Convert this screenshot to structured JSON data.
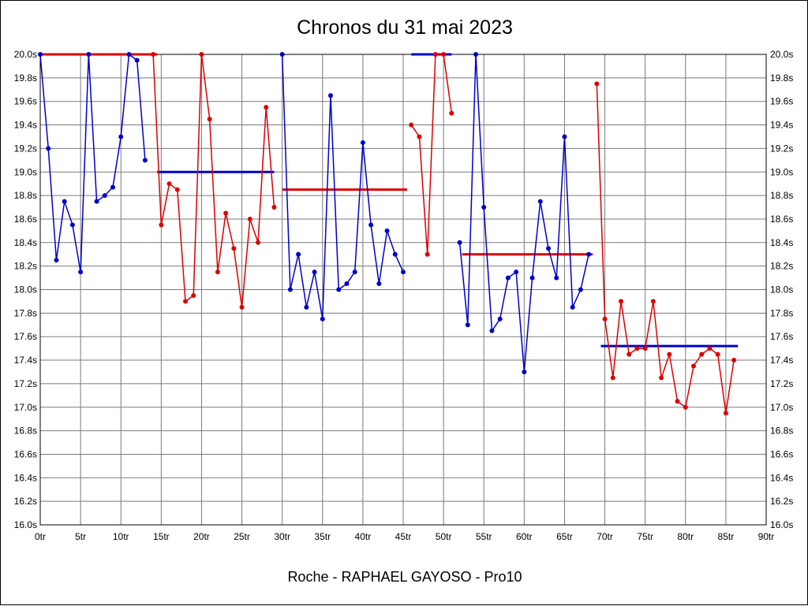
{
  "title": "Chronos du 31 mai 2023",
  "footer": "Roche - RAPHAEL GAYOSO - Pro10",
  "chart_data": {
    "type": "line",
    "title": "Chronos du 31 mai 2023",
    "x_unit": "tr",
    "y_unit": "s",
    "xlim": [
      0,
      90
    ],
    "ylim": [
      16.0,
      20.0
    ],
    "x_tick_step": 5,
    "y_tick_step": 0.2,
    "grid": true,
    "legend": "none",
    "x_tick_labels": [
      "0tr",
      "5tr",
      "10tr",
      "15tr",
      "20tr",
      "25tr",
      "30tr",
      "35tr",
      "40tr",
      "45tr",
      "50tr",
      "55tr",
      "60tr",
      "65tr",
      "70tr",
      "75tr",
      "80tr",
      "85tr",
      "90tr"
    ],
    "y_tick_labels": [
      "20.0s",
      "19.8s",
      "19.6s",
      "19.4s",
      "19.2s",
      "19.0s",
      "18.8s",
      "18.6s",
      "18.4s",
      "18.2s",
      "18.0s",
      "17.8s",
      "17.6s",
      "17.4s",
      "17.2s",
      "17.0s",
      "16.8s",
      "16.6s",
      "16.4s",
      "16.2s",
      "16.0s"
    ],
    "colors": {
      "blue": "#0000cc",
      "red": "#dd0000",
      "grid": "#7a7a7a",
      "axis": "#000000",
      "text": "#000000"
    },
    "segments": [
      {
        "name": "stint-1",
        "color": "blue",
        "laps": [
          [
            0,
            20.0
          ],
          [
            1,
            19.2
          ],
          [
            2,
            18.25
          ],
          [
            3,
            18.75
          ],
          [
            4,
            18.55
          ],
          [
            5,
            18.15
          ],
          [
            6,
            20.0
          ],
          [
            7,
            18.75
          ],
          [
            8,
            18.8
          ],
          [
            9,
            18.87
          ],
          [
            10,
            19.3
          ],
          [
            11,
            20.0
          ],
          [
            12,
            19.95
          ],
          [
            13,
            19.1
          ]
        ]
      },
      {
        "name": "stint-2",
        "color": "red",
        "laps": [
          [
            14,
            20.0
          ],
          [
            15,
            18.55
          ],
          [
            16,
            18.9
          ],
          [
            17,
            18.85
          ],
          [
            18,
            17.9
          ],
          [
            19,
            17.95
          ],
          [
            20,
            20.0
          ],
          [
            21,
            19.45
          ],
          [
            22,
            18.15
          ],
          [
            23,
            18.65
          ],
          [
            24,
            18.35
          ],
          [
            25,
            17.85
          ],
          [
            26,
            18.6
          ],
          [
            27,
            18.4
          ],
          [
            28,
            19.55
          ],
          [
            29,
            18.7
          ]
        ]
      },
      {
        "name": "stint-3",
        "color": "blue",
        "laps": [
          [
            30,
            20.0
          ],
          [
            31,
            18.0
          ],
          [
            32,
            18.3
          ],
          [
            33,
            17.85
          ],
          [
            34,
            18.15
          ],
          [
            35,
            17.75
          ],
          [
            36,
            19.65
          ],
          [
            37,
            18.0
          ],
          [
            38,
            18.05
          ],
          [
            39,
            18.15
          ],
          [
            40,
            19.25
          ],
          [
            41,
            18.55
          ],
          [
            42,
            18.05
          ],
          [
            43,
            18.5
          ],
          [
            44,
            18.3
          ],
          [
            45,
            18.15
          ]
        ]
      },
      {
        "name": "stint-4",
        "color": "red",
        "laps": [
          [
            46,
            19.4
          ],
          [
            47,
            19.3
          ],
          [
            48,
            18.3
          ],
          [
            49,
            20.0
          ],
          [
            50,
            20.0
          ],
          [
            51,
            19.5
          ]
        ]
      },
      {
        "name": "stint-5",
        "color": "blue",
        "laps": [
          [
            52,
            18.4
          ],
          [
            53,
            17.7
          ],
          [
            54,
            20.0
          ],
          [
            55,
            18.7
          ],
          [
            56,
            17.65
          ],
          [
            57,
            17.75
          ],
          [
            58,
            18.1
          ],
          [
            59,
            18.15
          ],
          [
            60,
            17.3
          ],
          [
            61,
            18.1
          ],
          [
            62,
            18.75
          ],
          [
            63,
            18.35
          ],
          [
            64,
            18.1
          ],
          [
            65,
            19.3
          ],
          [
            66,
            17.85
          ],
          [
            67,
            18.0
          ],
          [
            68,
            18.3
          ]
        ]
      },
      {
        "name": "stint-6",
        "color": "red",
        "laps": [
          [
            69,
            19.75
          ],
          [
            70,
            17.75
          ],
          [
            71,
            17.25
          ],
          [
            72,
            17.9
          ],
          [
            73,
            17.45
          ],
          [
            74,
            17.5
          ],
          [
            75,
            17.5
          ],
          [
            76,
            17.9
          ],
          [
            77,
            17.25
          ],
          [
            78,
            17.45
          ],
          [
            79,
            17.05
          ],
          [
            80,
            17.0
          ],
          [
            81,
            17.35
          ],
          [
            82,
            17.45
          ],
          [
            83,
            17.5
          ],
          [
            84,
            17.45
          ],
          [
            85,
            16.95
          ],
          [
            86,
            17.4
          ]
        ]
      }
    ],
    "mean_lines": [
      {
        "color": "red",
        "value": 20.0,
        "from": 0,
        "to": 14.5
      },
      {
        "color": "blue",
        "value": 19.0,
        "from": 14.5,
        "to": 29
      },
      {
        "color": "red",
        "value": 18.85,
        "from": 30,
        "to": 45.5
      },
      {
        "color": "blue",
        "value": 20.0,
        "from": 46,
        "to": 51
      },
      {
        "color": "red",
        "value": 18.3,
        "from": 52.3,
        "to": 68.5
      },
      {
        "color": "blue",
        "value": 17.52,
        "from": 69.5,
        "to": 86.5
      }
    ]
  }
}
